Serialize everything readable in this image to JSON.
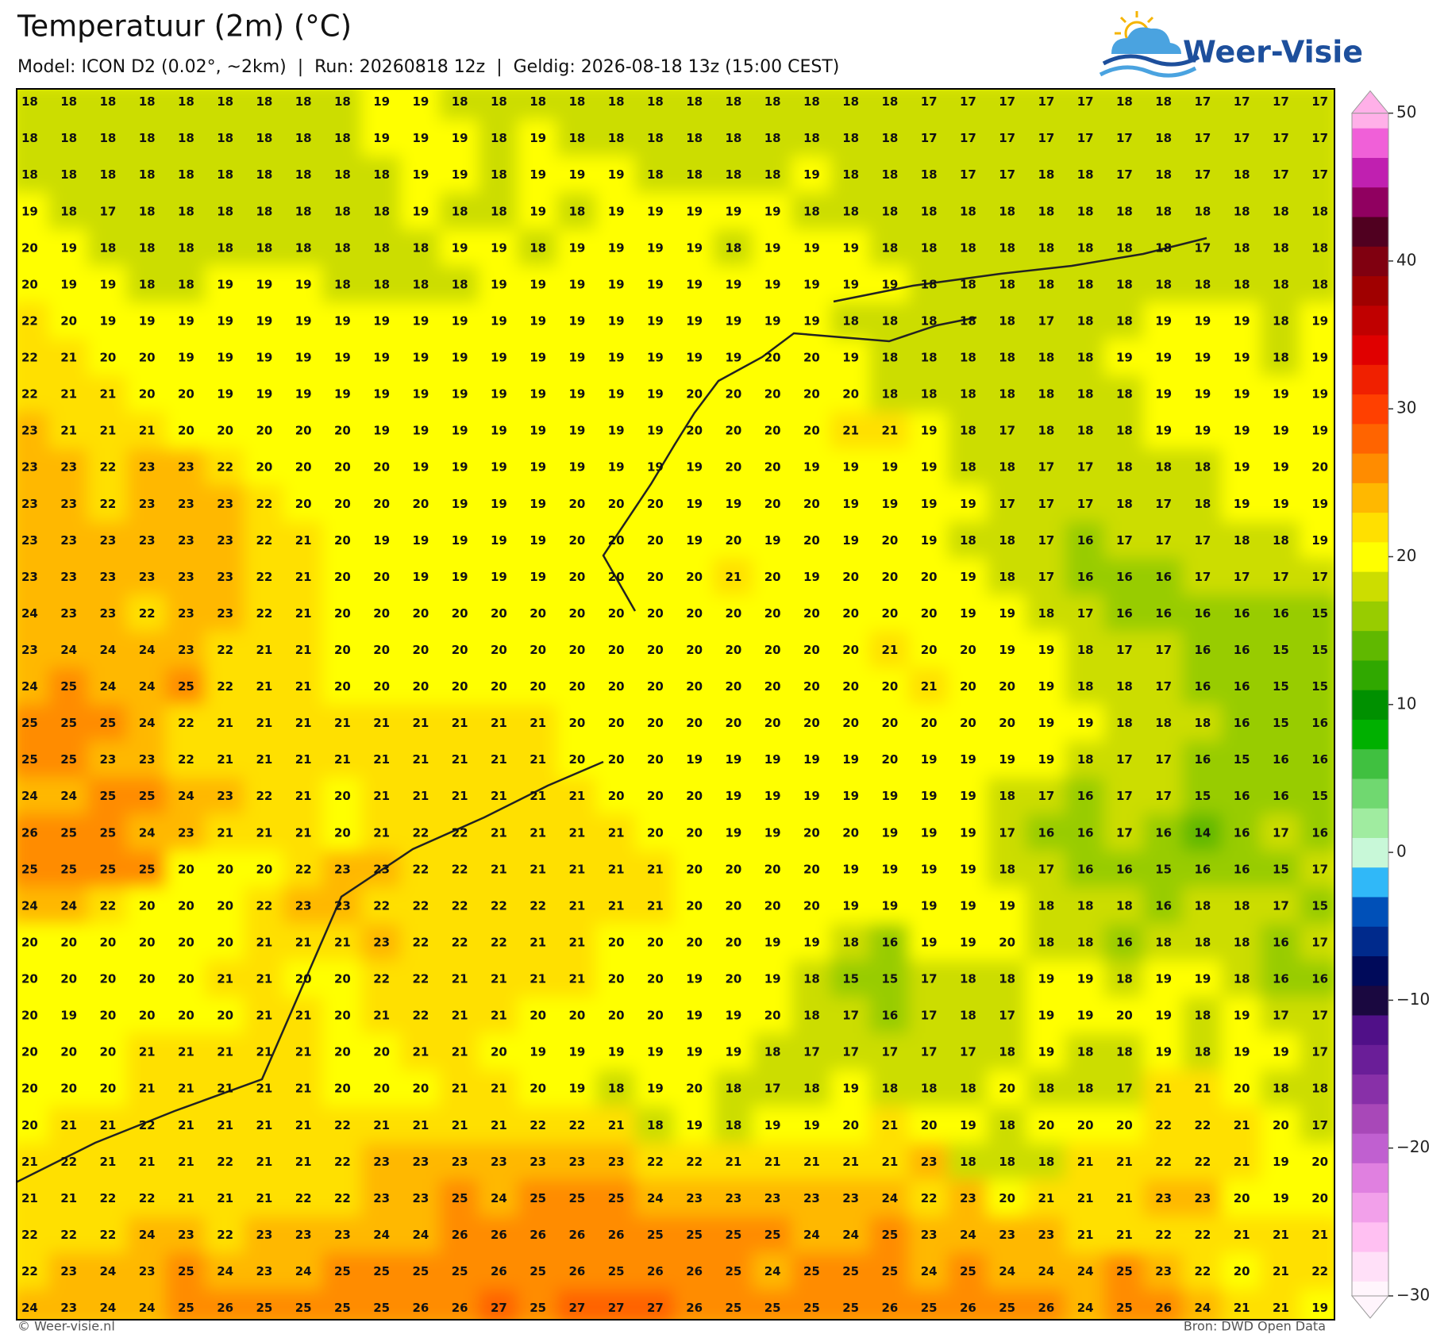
{
  "header": {
    "title": "Temperatuur (2m) (°C)",
    "subtitle": "Model: ICON D2 (0.02°, ~2km)  |  Run: 20260818 12z  |  Geldig: 2026-08-18 13z (15:00 CEST)"
  },
  "logo": {
    "text": "Weer-Visie"
  },
  "grid": {
    "rows": [
      [
        18,
        18,
        18,
        18,
        18,
        18,
        18,
        18,
        18,
        19,
        19,
        18,
        18,
        18,
        18,
        18,
        18,
        18,
        18,
        18,
        18,
        18,
        18,
        17,
        17,
        17,
        17,
        17,
        18,
        18,
        17,
        17,
        17,
        17
      ],
      [
        18,
        18,
        18,
        18,
        18,
        18,
        18,
        18,
        18,
        19,
        19,
        19,
        18,
        19,
        18,
        18,
        18,
        18,
        18,
        18,
        18,
        18,
        18,
        17,
        17,
        17,
        17,
        17,
        17,
        18,
        17,
        17,
        17,
        17
      ],
      [
        18,
        18,
        18,
        18,
        18,
        18,
        18,
        18,
        18,
        18,
        19,
        19,
        18,
        19,
        19,
        19,
        18,
        18,
        18,
        18,
        19,
        18,
        18,
        18,
        17,
        17,
        18,
        18,
        17,
        18,
        17,
        18,
        17,
        17
      ],
      [
        19,
        18,
        17,
        18,
        18,
        18,
        18,
        18,
        18,
        18,
        19,
        18,
        18,
        19,
        18,
        19,
        19,
        19,
        19,
        19,
        18,
        18,
        18,
        18,
        18,
        18,
        18,
        18,
        18,
        18,
        18,
        18,
        18,
        18
      ],
      [
        20,
        19,
        18,
        18,
        18,
        18,
        18,
        18,
        18,
        18,
        18,
        19,
        19,
        18,
        19,
        19,
        19,
        19,
        18,
        19,
        19,
        19,
        18,
        18,
        18,
        18,
        18,
        18,
        18,
        18,
        17,
        18,
        18,
        18
      ],
      [
        20,
        19,
        19,
        18,
        18,
        19,
        19,
        19,
        18,
        18,
        18,
        18,
        19,
        19,
        19,
        19,
        19,
        19,
        19,
        19,
        19,
        19,
        19,
        18,
        18,
        18,
        18,
        18,
        18,
        18,
        18,
        18,
        18,
        18
      ],
      [
        22,
        20,
        19,
        19,
        19,
        19,
        19,
        19,
        19,
        19,
        19,
        19,
        19,
        19,
        19,
        19,
        19,
        19,
        19,
        19,
        19,
        18,
        18,
        18,
        18,
        18,
        17,
        18,
        18,
        19,
        19,
        19,
        18,
        19
      ],
      [
        22,
        21,
        20,
        20,
        19,
        19,
        19,
        19,
        19,
        19,
        19,
        19,
        19,
        19,
        19,
        19,
        19,
        19,
        19,
        20,
        20,
        19,
        18,
        18,
        18,
        18,
        18,
        18,
        19,
        19,
        19,
        19,
        18,
        19
      ],
      [
        22,
        21,
        21,
        20,
        20,
        19,
        19,
        19,
        19,
        19,
        19,
        19,
        19,
        19,
        19,
        19,
        19,
        20,
        20,
        20,
        20,
        20,
        18,
        18,
        18,
        18,
        18,
        18,
        18,
        19,
        19,
        19,
        19,
        19
      ],
      [
        23,
        21,
        21,
        21,
        20,
        20,
        20,
        20,
        20,
        19,
        19,
        19,
        19,
        19,
        19,
        19,
        19,
        20,
        20,
        20,
        20,
        21,
        21,
        19,
        18,
        17,
        18,
        18,
        18,
        19,
        19,
        19,
        19,
        19
      ],
      [
        23,
        23,
        22,
        23,
        23,
        22,
        20,
        20,
        20,
        20,
        19,
        19,
        19,
        19,
        19,
        19,
        19,
        19,
        20,
        20,
        19,
        19,
        19,
        19,
        18,
        18,
        17,
        17,
        18,
        18,
        18,
        19,
        19,
        20
      ],
      [
        23,
        23,
        22,
        23,
        23,
        23,
        22,
        20,
        20,
        20,
        20,
        19,
        19,
        19,
        20,
        20,
        20,
        19,
        19,
        20,
        20,
        19,
        19,
        19,
        19,
        17,
        17,
        17,
        18,
        17,
        18,
        19,
        19,
        19
      ],
      [
        23,
        23,
        23,
        23,
        23,
        23,
        22,
        21,
        20,
        19,
        19,
        19,
        19,
        19,
        20,
        20,
        20,
        19,
        20,
        19,
        20,
        19,
        20,
        19,
        18,
        18,
        17,
        16,
        17,
        17,
        17,
        18,
        18,
        19
      ],
      [
        23,
        23,
        23,
        23,
        23,
        23,
        22,
        21,
        20,
        20,
        19,
        19,
        19,
        19,
        20,
        20,
        20,
        20,
        21,
        20,
        19,
        20,
        20,
        20,
        19,
        18,
        17,
        16,
        16,
        16,
        17,
        17,
        17,
        17
      ],
      [
        24,
        23,
        23,
        22,
        23,
        23,
        22,
        21,
        20,
        20,
        20,
        20,
        20,
        20,
        20,
        20,
        20,
        20,
        20,
        20,
        20,
        20,
        20,
        20,
        19,
        19,
        18,
        17,
        16,
        16,
        16,
        16,
        16,
        15
      ],
      [
        23,
        24,
        24,
        24,
        23,
        22,
        21,
        21,
        20,
        20,
        20,
        20,
        20,
        20,
        20,
        20,
        20,
        20,
        20,
        20,
        20,
        20,
        21,
        20,
        20,
        19,
        19,
        18,
        17,
        17,
        16,
        16,
        15,
        15
      ],
      [
        24,
        25,
        24,
        24,
        25,
        22,
        21,
        21,
        20,
        20,
        20,
        20,
        20,
        20,
        20,
        20,
        20,
        20,
        20,
        20,
        20,
        20,
        20,
        21,
        20,
        20,
        19,
        18,
        18,
        17,
        16,
        16,
        15,
        15
      ],
      [
        25,
        25,
        25,
        24,
        22,
        21,
        21,
        21,
        21,
        21,
        21,
        21,
        21,
        21,
        20,
        20,
        20,
        20,
        20,
        20,
        20,
        20,
        20,
        20,
        20,
        20,
        19,
        19,
        18,
        18,
        18,
        16,
        15,
        16
      ],
      [
        25,
        25,
        23,
        23,
        22,
        21,
        21,
        21,
        21,
        21,
        21,
        21,
        21,
        21,
        20,
        20,
        20,
        19,
        19,
        19,
        19,
        19,
        20,
        19,
        19,
        19,
        19,
        18,
        17,
        17,
        16,
        15,
        16,
        16
      ],
      [
        24,
        24,
        25,
        25,
        24,
        23,
        22,
        21,
        20,
        21,
        21,
        21,
        21,
        21,
        21,
        20,
        20,
        20,
        19,
        19,
        19,
        19,
        19,
        19,
        19,
        18,
        17,
        16,
        17,
        17,
        15,
        16,
        16,
        15
      ],
      [
        26,
        25,
        25,
        24,
        23,
        21,
        21,
        21,
        20,
        21,
        22,
        22,
        21,
        21,
        21,
        21,
        20,
        20,
        19,
        19,
        20,
        20,
        19,
        19,
        19,
        17,
        16,
        16,
        17,
        16,
        14,
        16,
        17,
        16
      ],
      [
        25,
        25,
        25,
        25,
        20,
        20,
        20,
        22,
        23,
        23,
        22,
        22,
        21,
        21,
        21,
        21,
        21,
        20,
        20,
        20,
        20,
        19,
        19,
        19,
        19,
        18,
        17,
        16,
        16,
        15,
        16,
        16,
        15,
        17
      ],
      [
        24,
        24,
        22,
        20,
        20,
        20,
        22,
        23,
        23,
        22,
        22,
        22,
        22,
        22,
        21,
        21,
        21,
        20,
        20,
        20,
        20,
        19,
        19,
        19,
        19,
        19,
        18,
        18,
        18,
        16,
        18,
        18,
        17,
        15
      ],
      [
        20,
        20,
        20,
        20,
        20,
        20,
        21,
        21,
        21,
        23,
        22,
        22,
        22,
        21,
        21,
        20,
        20,
        20,
        20,
        19,
        19,
        18,
        16,
        19,
        19,
        20,
        18,
        18,
        16,
        18,
        18,
        18,
        16,
        17
      ],
      [
        20,
        20,
        20,
        20,
        20,
        21,
        21,
        20,
        20,
        22,
        22,
        21,
        21,
        21,
        21,
        20,
        20,
        19,
        20,
        19,
        18,
        15,
        15,
        17,
        18,
        18,
        19,
        19,
        18,
        19,
        19,
        18,
        16,
        16
      ],
      [
        20,
        19,
        20,
        20,
        20,
        20,
        21,
        21,
        20,
        21,
        22,
        21,
        21,
        20,
        20,
        20,
        20,
        19,
        19,
        20,
        18,
        17,
        16,
        17,
        18,
        17,
        19,
        19,
        20,
        19,
        18,
        19,
        17,
        17
      ],
      [
        20,
        20,
        20,
        21,
        21,
        21,
        21,
        21,
        20,
        20,
        21,
        21,
        20,
        19,
        19,
        19,
        19,
        19,
        19,
        18,
        17,
        17,
        17,
        17,
        17,
        18,
        19,
        18,
        18,
        19,
        18,
        19,
        19,
        17
      ],
      [
        20,
        20,
        20,
        21,
        21,
        21,
        21,
        21,
        20,
        20,
        20,
        21,
        21,
        20,
        19,
        18,
        19,
        20,
        18,
        17,
        18,
        19,
        18,
        18,
        18,
        20,
        18,
        18,
        17,
        21,
        21,
        20,
        18,
        18
      ],
      [
        20,
        21,
        21,
        22,
        21,
        21,
        21,
        21,
        22,
        21,
        21,
        21,
        21,
        22,
        22,
        21,
        18,
        19,
        18,
        19,
        19,
        20,
        21,
        20,
        19,
        18,
        20,
        20,
        20,
        22,
        22,
        21,
        20,
        17
      ],
      [
        21,
        22,
        21,
        21,
        21,
        22,
        21,
        21,
        22,
        23,
        23,
        23,
        23,
        23,
        23,
        23,
        22,
        22,
        21,
        21,
        21,
        21,
        21,
        23,
        18,
        18,
        18,
        21,
        21,
        22,
        22,
        21,
        19,
        20
      ],
      [
        21,
        21,
        22,
        22,
        21,
        21,
        21,
        22,
        22,
        23,
        23,
        25,
        24,
        25,
        25,
        25,
        24,
        23,
        23,
        23,
        23,
        23,
        24,
        22,
        23,
        20,
        21,
        21,
        21,
        23,
        23,
        20,
        19,
        20
      ],
      [
        22,
        22,
        22,
        24,
        23,
        22,
        23,
        23,
        23,
        24,
        24,
        26,
        26,
        26,
        26,
        26,
        25,
        25,
        25,
        25,
        24,
        24,
        25,
        23,
        24,
        23,
        23,
        21,
        21,
        22,
        22,
        21,
        21,
        21
      ],
      [
        22,
        23,
        24,
        23,
        25,
        24,
        23,
        24,
        25,
        25,
        25,
        25,
        26,
        25,
        26,
        25,
        26,
        26,
        25,
        24,
        25,
        25,
        25,
        24,
        25,
        24,
        24,
        24,
        25,
        23,
        22,
        20,
        21,
        22
      ],
      [
        24,
        23,
        24,
        24,
        25,
        26,
        25,
        25,
        25,
        25,
        26,
        26,
        27,
        25,
        27,
        27,
        27,
        26,
        25,
        25,
        25,
        25,
        26,
        25,
        26,
        25,
        26,
        24,
        25,
        26,
        24,
        21,
        21,
        19
      ]
    ]
  },
  "colorbar": {
    "clim": [
      -30,
      50
    ],
    "ticks": [
      50,
      40,
      30,
      20,
      10,
      0,
      {
        "value": -10,
        "label": "−10"
      },
      {
        "value": -20,
        "label": "−20"
      },
      {
        "value": -30,
        "label": "−30"
      }
    ],
    "colors": [
      "#fff5fc",
      "#ffe0f8",
      "#ffc0f2",
      "#f2a0ea",
      "#e080e0",
      "#c060d0",
      "#a848b8",
      "#8830a8",
      "#6a1e98",
      "#501088",
      "#1a0840",
      "#000a5a",
      "#002a8c",
      "#0050b8",
      "#30b8f8",
      "#c8f8d8",
      "#a0eca0",
      "#70d870",
      "#40c040",
      "#00b000",
      "#009000",
      "#30a800",
      "#60b800",
      "#98cc00",
      "#ccdd00",
      "#ffff00",
      "#ffe000",
      "#ffb800",
      "#ff8c00",
      "#ff6400",
      "#ff4000",
      "#f02000",
      "#e00000",
      "#c00000",
      "#a00000",
      "#800010",
      "#500020",
      "#900060",
      "#c020b0",
      "#f060d8",
      "#ffb0e8"
    ]
  },
  "footer": {
    "left": "© Weer-visie.nl",
    "right": "Bron: DWD Open Data"
  }
}
